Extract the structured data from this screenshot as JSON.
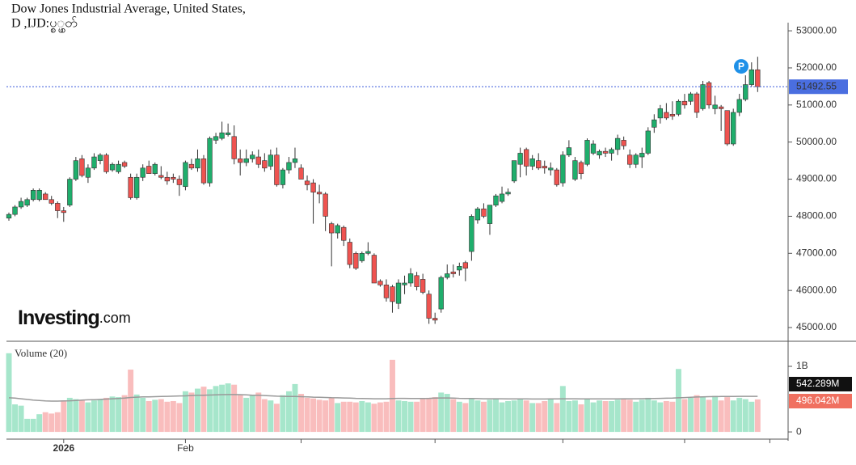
{
  "chart_data": {
    "type": "candlestick",
    "title": "Dow Jones Industrial Average, United States,",
    "subtitle": "D ,IJD:ပ္စွ္ပတ်",
    "logo": {
      "bold": "Investing",
      "light": ".com"
    },
    "marker_label": "P",
    "up_color": "#1fae6c",
    "down_color": "#ef5350",
    "ohlc": [
      [
        47950,
        48100,
        47880,
        48050
      ],
      [
        48050,
        48300,
        48000,
        48250
      ],
      [
        48250,
        48500,
        48200,
        48400
      ],
      [
        48300,
        48500,
        48250,
        48450
      ],
      [
        48450,
        48750,
        48400,
        48700
      ],
      [
        48450,
        48750,
        48400,
        48700
      ],
      [
        48600,
        48650,
        48450,
        48450
      ],
      [
        48450,
        48550,
        48300,
        48350
      ],
      [
        48350,
        48400,
        47950,
        48150
      ],
      [
        48150,
        48250,
        47850,
        48100
      ],
      [
        48300,
        49050,
        48250,
        49000
      ],
      [
        49000,
        49600,
        48950,
        49500
      ],
      [
        49550,
        49650,
        49050,
        49100
      ],
      [
        49050,
        49400,
        48900,
        49300
      ],
      [
        49300,
        49700,
        49250,
        49600
      ],
      [
        49500,
        49700,
        49400,
        49650
      ],
      [
        49650,
        49700,
        49150,
        49200
      ],
      [
        49250,
        49450,
        49200,
        49400
      ],
      [
        49200,
        49500,
        49150,
        49400
      ],
      [
        49450,
        49500,
        49300,
        49350
      ],
      [
        49050,
        49150,
        48450,
        48500
      ],
      [
        48500,
        49150,
        48450,
        49050
      ],
      [
        49050,
        49400,
        48950,
        49300
      ],
      [
        49350,
        49500,
        49150,
        49150
      ],
      [
        49150,
        49450,
        49100,
        49400
      ],
      [
        49100,
        49350,
        49000,
        49050
      ],
      [
        49050,
        49200,
        48850,
        48950
      ],
      [
        49050,
        49150,
        48900,
        49000
      ],
      [
        49000,
        49100,
        48550,
        48850
      ],
      [
        48800,
        49500,
        48700,
        49450
      ],
      [
        49400,
        49550,
        49250,
        49300
      ],
      [
        49300,
        49800,
        49200,
        49550
      ],
      [
        49550,
        49650,
        48850,
        48900
      ],
      [
        48900,
        50150,
        48800,
        50100
      ],
      [
        50050,
        50250,
        49950,
        50150
      ],
      [
        50100,
        50550,
        50050,
        50250
      ],
      [
        50200,
        50500,
        50150,
        50250
      ],
      [
        50150,
        50450,
        49400,
        49550
      ],
      [
        49550,
        49800,
        49100,
        49450
      ],
      [
        49450,
        49800,
        49350,
        49550
      ],
      [
        49550,
        49750,
        49450,
        49650
      ],
      [
        49600,
        49800,
        49300,
        49400
      ],
      [
        49500,
        49700,
        49200,
        49300
      ],
      [
        49350,
        49800,
        49250,
        49650
      ],
      [
        49650,
        49850,
        48800,
        48850
      ],
      [
        48850,
        49300,
        48750,
        49250
      ],
      [
        49250,
        49600,
        49150,
        49450
      ],
      [
        49450,
        49850,
        49300,
        49550
      ],
      [
        49300,
        49400,
        49000,
        49000
      ],
      [
        48950,
        49100,
        48700,
        48850
      ],
      [
        48900,
        49000,
        47800,
        48650
      ],
      [
        48650,
        48850,
        48350,
        48600
      ],
      [
        48600,
        48650,
        47600,
        48000
      ],
      [
        47800,
        47850,
        46650,
        47550
      ],
      [
        47550,
        47800,
        47400,
        47750
      ],
      [
        47700,
        47750,
        47200,
        47350
      ],
      [
        47300,
        47400,
        46600,
        46700
      ],
      [
        47000,
        47050,
        46550,
        46600
      ],
      [
        46800,
        47050,
        46750,
        47000
      ],
      [
        47000,
        47300,
        46950,
        47050
      ],
      [
        46950,
        47000,
        46200,
        46200
      ],
      [
        46250,
        46300,
        46100,
        46150
      ],
      [
        46150,
        46300,
        45700,
        45800
      ],
      [
        46100,
        46150,
        45400,
        45700
      ],
      [
        45650,
        46300,
        45500,
        46200
      ],
      [
        46150,
        46400,
        45900,
        46200
      ],
      [
        46200,
        46600,
        46100,
        46450
      ],
      [
        46400,
        46500,
        46000,
        46100
      ],
      [
        46300,
        46450,
        45900,
        45950
      ],
      [
        45900,
        46000,
        45100,
        45250
      ],
      [
        45250,
        45400,
        45100,
        45200
      ],
      [
        45500,
        46400,
        45400,
        46350
      ],
      [
        46350,
        46700,
        46300,
        46450
      ],
      [
        46500,
        46700,
        46350,
        46450
      ],
      [
        46550,
        46750,
        46400,
        46650
      ],
      [
        46750,
        46800,
        46250,
        46600
      ],
      [
        47050,
        48050,
        46800,
        48000
      ],
      [
        47900,
        48250,
        47800,
        48200
      ],
      [
        48200,
        48350,
        47950,
        48000
      ],
      [
        47800,
        48300,
        47500,
        48300
      ],
      [
        48300,
        48600,
        48250,
        48550
      ],
      [
        48400,
        48800,
        48350,
        48600
      ],
      [
        48600,
        48750,
        48550,
        48650
      ],
      [
        48950,
        49500,
        48900,
        49500
      ],
      [
        49400,
        49850,
        49050,
        49700
      ],
      [
        49800,
        49850,
        49100,
        49350
      ],
      [
        49350,
        49650,
        49250,
        49550
      ],
      [
        49500,
        49700,
        49250,
        49300
      ],
      [
        49350,
        49500,
        49150,
        49300
      ],
      [
        49250,
        49450,
        49100,
        49300
      ],
      [
        49250,
        49300,
        48800,
        48850
      ],
      [
        48900,
        49750,
        48800,
        49650
      ],
      [
        49650,
        50050,
        49600,
        49850
      ],
      [
        49000,
        49600,
        48950,
        49500
      ],
      [
        49450,
        49500,
        49000,
        49150
      ],
      [
        49400,
        50100,
        49350,
        50050
      ],
      [
        49700,
        50050,
        49650,
        49950
      ],
      [
        49650,
        49800,
        49550,
        49750
      ],
      [
        49750,
        49850,
        49600,
        49700
      ],
      [
        49700,
        49850,
        49500,
        49800
      ],
      [
        49800,
        50200,
        49650,
        50100
      ],
      [
        50050,
        50150,
        49800,
        49900
      ],
      [
        49650,
        49800,
        49300,
        49400
      ],
      [
        49400,
        49700,
        49300,
        49650
      ],
      [
        49600,
        49850,
        49300,
        49700
      ],
      [
        49700,
        50400,
        49650,
        50300
      ],
      [
        50400,
        50750,
        50250,
        50600
      ],
      [
        50650,
        51000,
        50500,
        50900
      ],
      [
        50800,
        51050,
        50600,
        50650
      ],
      [
        50750,
        51100,
        50600,
        50700
      ],
      [
        50750,
        51150,
        50700,
        51100
      ],
      [
        51100,
        51300,
        50900,
        51000
      ],
      [
        51100,
        51350,
        51000,
        51300
      ],
      [
        51300,
        51350,
        50650,
        50800
      ],
      [
        50900,
        51650,
        50850,
        51550
      ],
      [
        51600,
        51650,
        50900,
        51000
      ],
      [
        50900,
        51250,
        50750,
        51000
      ],
      [
        50950,
        51000,
        50300,
        50900
      ],
      [
        50850,
        50850,
        49900,
        49950
      ],
      [
        49950,
        50900,
        49900,
        50800
      ],
      [
        50800,
        51300,
        50700,
        51150
      ],
      [
        51150,
        51800,
        51100,
        51550
      ],
      [
        51550,
        52150,
        51500,
        51950
      ],
      [
        51950,
        52300,
        51350,
        51492.55
      ]
    ],
    "xlim": [
      -0.4,
      128
    ],
    "xticks": [
      {
        "value": 9,
        "label": "2026"
      },
      {
        "value": 29,
        "label": "Feb"
      },
      {
        "value": 48,
        "label": null
      },
      {
        "value": 70,
        "label": null
      },
      {
        "value": 91,
        "label": null
      },
      {
        "value": 111,
        "label": null
      },
      {
        "value": 125,
        "label": null
      }
    ],
    "ylim": [
      44630,
      53220
    ],
    "yticks": [
      {
        "value": 45000,
        "label": "45000.00"
      },
      {
        "value": 46000,
        "label": "46000.00"
      },
      {
        "value": 47000,
        "label": "47000.00"
      },
      {
        "value": 48000,
        "label": "48000.00"
      },
      {
        "value": 49000,
        "label": "49000.00"
      },
      {
        "value": 50000,
        "label": "50000.00"
      },
      {
        "value": 51000,
        "label": "51000.00"
      },
      {
        "value": 52000,
        "label": "52000.00"
      },
      {
        "value": 53000,
        "label": "53000.00"
      }
    ],
    "volume": {
      "label": "Volume (20)",
      "up_color": "#a6e6cb",
      "down_color": "#f9bdbd",
      "ma_color": "#999999",
      "ylim": [
        -110,
        1370
      ],
      "yticks": [
        0,
        {
          "value": 1000,
          "label": "1B"
        }
      ],
      "values": [
        1200,
        420,
        400,
        200,
        200,
        270,
        300,
        280,
        300,
        480,
        520,
        500,
        480,
        450,
        480,
        500,
        520,
        540,
        530,
        560,
        950,
        570,
        520,
        470,
        490,
        500,
        460,
        470,
        440,
        620,
        600,
        660,
        690,
        650,
        700,
        720,
        740,
        720,
        560,
        520,
        560,
        600,
        500,
        480,
        430,
        560,
        620,
        730,
        580,
        520,
        510,
        490,
        480,
        520,
        440,
        460,
        460,
        450,
        470,
        450,
        430,
        450,
        460,
        1100,
        480,
        470,
        460,
        460,
        500,
        520,
        530,
        600,
        580,
        500,
        460,
        440,
        510,
        480,
        460,
        490,
        510,
        450,
        470,
        480,
        510,
        480,
        440,
        440,
        470,
        500,
        440,
        700,
        470,
        480,
        420,
        500,
        450,
        480,
        470,
        470,
        490,
        500,
        490,
        460,
        490,
        520,
        480,
        450,
        470,
        460,
        960,
        500,
        520,
        560,
        530,
        490,
        550,
        480,
        530,
        480,
        520,
        500,
        460,
        496.042
      ],
      "value_labels": {
        "123": "496.042M"
      },
      "ma": [
        520,
        515,
        505,
        495,
        485,
        478,
        472,
        470,
        470,
        472,
        475,
        480,
        485,
        490,
        492,
        495,
        500,
        505,
        510,
        515,
        525,
        530,
        535,
        535,
        538,
        540,
        542,
        545,
        548,
        550,
        555,
        558,
        560,
        562,
        565,
        568,
        570,
        570,
        568,
        565,
        560,
        558,
        555,
        550,
        545,
        542,
        540,
        540,
        538,
        535,
        530,
        528,
        525,
        522,
        520,
        518,
        515,
        512,
        510,
        508,
        505,
        505,
        505,
        510,
        512,
        512,
        510,
        510,
        510,
        512,
        515,
        518,
        518,
        515,
        512,
        510,
        510,
        508,
        506,
        505,
        505,
        505,
        504,
        503,
        503,
        503,
        502,
        502,
        502,
        503,
        503,
        505,
        505,
        505,
        504,
        504,
        504,
        503,
        503,
        503,
        504,
        505,
        506,
        506,
        507,
        508,
        510,
        512,
        514,
        515,
        520,
        524,
        528,
        532,
        535,
        537,
        539,
        540,
        541,
        541,
        542,
        542,
        542,
        542.289
      ],
      "ma_labels": {
        "123": "542.289M"
      }
    }
  }
}
